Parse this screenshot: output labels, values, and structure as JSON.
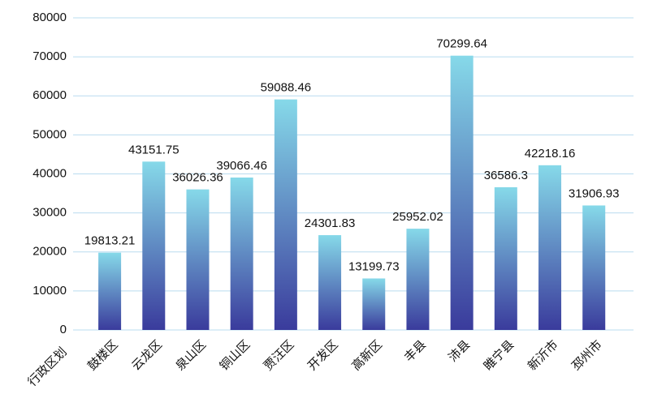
{
  "chart_data": {
    "type": "bar",
    "x_label": "行政区划",
    "categories": [
      "鼓楼区",
      "云龙区",
      "泉山区",
      "铜山区",
      "贾汪区",
      "开发区",
      "高新区",
      "丰县",
      "沛县",
      "睢宁县",
      "新沂市",
      "邳州市"
    ],
    "values": [
      19813.21,
      43151.75,
      36026.36,
      39066.46,
      59088.46,
      24301.83,
      13199.73,
      25952.02,
      70299.64,
      36586.3,
      42218.16,
      31906.93
    ],
    "gradient": [
      "#86d9e9",
      "#3a3b9c"
    ],
    "ylim": [
      0,
      80000
    ],
    "yticks": [
      0,
      10000,
      20000,
      30000,
      40000,
      50000,
      60000,
      70000,
      80000
    ],
    "grid": true
  }
}
